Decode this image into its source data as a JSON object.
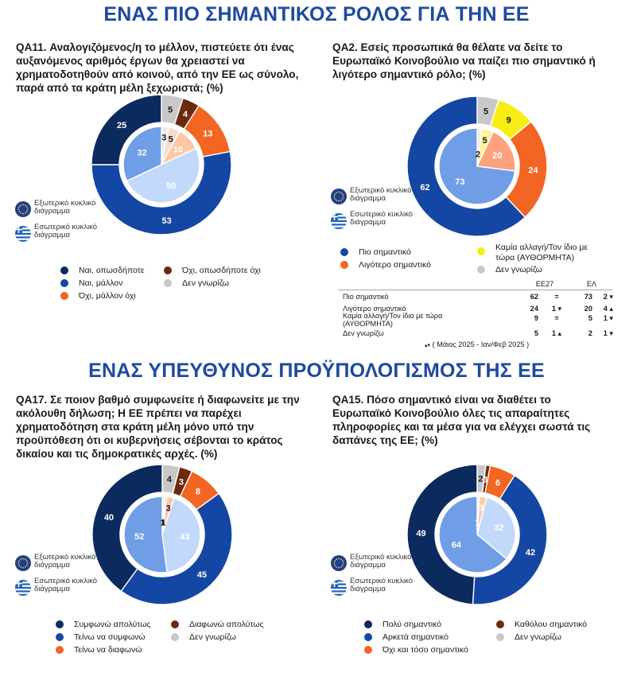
{
  "section1": {
    "title": "ΕΝΑΣ ΠΙΟ ΣΗΜΑΝΤΙΚΟΣ ΡΟΛΟΣ ΓΙΑ ΤΗΝ ΕΕ"
  },
  "section2": {
    "title": "ΕΝΑΣ ΥΠΕΥΘΥΝΟΣ ΠΡΟΫΠΟΛΟΓΙΣΜΟΣ ΤΗΣ ΕΕ"
  },
  "ring_key": {
    "outer_label": "Εξωτερικό κυκλικό διάγραμμα",
    "inner_label": "Εσωτερικό κυκλικό διάγραμμα",
    "outer_icon": "eu-flag-icon",
    "inner_icon": "greek-flag-icon"
  },
  "chart_data": [
    {
      "id": "qa11",
      "type": "pie",
      "title": "QA11. Αναλογιζόμενος/η το μέλλον, πιστεύετε ότι ένας αυξανόμενος αριθμός έργων θα χρειαστεί να χρηματοδοτηθούν από κοινού, από την ΕΕ ως σύνολο, παρά από τα κράτη μέλη ξεχωριστά; (%)",
      "rings": [
        "Εξωτερικό κυκλικό διάγραμμα",
        "Εσωτερικό κυκλικό διάγραμμα"
      ],
      "categories": [
        "Ναι, οπωσδήποτε",
        "Ναι, μάλλον",
        "Όχι, μάλλον όχι",
        "Όχι, οπωσδήποτε όχι",
        "Δεν γνωρίζω"
      ],
      "series": [
        {
          "name": "Εξωτερικό κυκλικό διάγραμμα",
          "values": [
            25,
            53,
            13,
            4,
            5
          ]
        },
        {
          "name": "Εσωτερικό κυκλικό διάγραμμα",
          "values": [
            32,
            50,
            10,
            5,
            3
          ]
        }
      ]
    },
    {
      "id": "qa2",
      "type": "pie",
      "title": "QA2. Εσείς προσωπικά θα θέλατε να δείτε το Ευρωπαϊκό Κοινοβούλιο να παίζει πιο σημαντικό ή λιγότερο σημαντικό ρόλο; (%)",
      "rings": [
        "Εξωτερικό κυκλικό διάγραμμα",
        "Εσωτερικό κυκλικό διάγραμμα"
      ],
      "categories": [
        "Πιο σημαντικό",
        "Λιγότερο σημαντικό",
        "Καμία αλλαγή/Τον ίδιο με τώρα (ΑΥΘΟΡΜΗΤΑ)",
        "Δεν γνωρίζω"
      ],
      "series": [
        {
          "name": "Εξωτερικό κυκλικό διάγραμμα",
          "values": [
            62,
            24,
            9,
            5
          ]
        },
        {
          "name": "Εσωτερικό κυκλικό διάγραμμα",
          "values": [
            73,
            20,
            5,
            2
          ]
        }
      ]
    },
    {
      "id": "qa17",
      "type": "pie",
      "title": "QA17. Σε ποιον βαθμό συμφωνείτε ή διαφωνείτε με την ακόλουθη δήλωση; Η ΕΕ πρέπει να παρέχει χρηματοδότηση στα κράτη μέλη μόνο υπό την προϋπόθεση ότι οι κυβερνήσεις σέβονται το κράτος δικαίου και τις δημοκρατικές αρχές. (%)",
      "rings": [
        "Εξωτερικό κυκλικό διάγραμμα",
        "Εσωτερικό κυκλικό διάγραμμα"
      ],
      "categories": [
        "Συμφωνώ απολύτως",
        "Τείνω να συμφωνώ",
        "Τείνω να διαφωνώ",
        "Διαφωνώ απολύτως",
        "Δεν γνωρίζω"
      ],
      "series": [
        {
          "name": "Εξωτερικό κυκλικό διάγραμμα",
          "values": [
            40,
            45,
            8,
            3,
            4
          ]
        },
        {
          "name": "Εσωτερικό κυκλικό διάγραμμα",
          "values": [
            52,
            43,
            3,
            1,
            1
          ]
        }
      ]
    },
    {
      "id": "qa15",
      "type": "pie",
      "title": "QA15. Πόσο σημαντικό είναι να διαθέτει το Ευρωπαϊκό Κοινοβούλιο όλες τις απαραίτητες πληροφορίες και τα μέσα για να ελέγχει σωστά τις δαπάνες της ΕΕ; (%)",
      "rings": [
        "Εξωτερικό κυκλικό διάγραμμα",
        "Εσωτερικό κυκλικό διάγραμμα"
      ],
      "categories": [
        "Πολύ σημαντικό",
        "Αρκετά σημαντικό",
        "Όχι και τόσο σημαντικό",
        "Καθόλου σημαντικό",
        "Δεν γνωρίζω"
      ],
      "series": [
        {
          "name": "Εξωτερικό κυκλικό διάγραμμα",
          "values": [
            49,
            42,
            6,
            1,
            2
          ]
        },
        {
          "name": "Εσωτερικό κυκλικό διάγραμμα",
          "values": [
            64,
            32,
            3,
            0,
            1
          ]
        }
      ]
    }
  ],
  "colors": {
    "qa11": {
      "outer": [
        "#0b2a5e",
        "#1447a3",
        "#f26522",
        "#6b2a0e",
        "#c8c8c8"
      ],
      "inner": [
        "#6f9ee6",
        "#c3d9fb",
        "#fdc7a6",
        "#f6dccb",
        "#ececec"
      ]
    },
    "qa2": {
      "outer": [
        "#1447a3",
        "#f26522",
        "#f7ee14",
        "#c8c8c8"
      ],
      "inner": [
        "#6f9ee6",
        "#fca27c",
        "#fdf49a",
        "#ececec"
      ]
    },
    "qa17": {
      "outer": [
        "#0b2a5e",
        "#1447a3",
        "#f26522",
        "#6b2a0e",
        "#c8c8c8"
      ],
      "inner": [
        "#6f9ee6",
        "#c3d9fb",
        "#fdc7a6",
        "#f6dccb",
        "#ececec"
      ]
    },
    "qa15": {
      "outer": [
        "#0b2a5e",
        "#1447a3",
        "#f26522",
        "#6b2a0e",
        "#c8c8c8"
      ],
      "inner": [
        "#6f9ee6",
        "#c3d9fb",
        "#fdc7a6",
        "#f6dccb",
        "#ececec"
      ]
    }
  },
  "label_colors": {
    "qa11": {
      "outer": [
        "#ffffff",
        "#ffffff",
        "#ffffff",
        "#ffffff",
        "#1a1a1a"
      ],
      "inner": [
        "#ffffff",
        "#ffffff",
        "#ffffff",
        "#1a1a1a",
        "#1a1a1a"
      ]
    },
    "qa2": {
      "outer": [
        "#ffffff",
        "#ffffff",
        "#1a1a1a",
        "#1a1a1a"
      ],
      "inner": [
        "#ffffff",
        "#ffffff",
        "#1a1a1a",
        "#1a1a1a"
      ]
    },
    "qa17": {
      "outer": [
        "#ffffff",
        "#ffffff",
        "#ffffff",
        "#ffffff",
        "#1a1a1a"
      ],
      "inner": [
        "#ffffff",
        "#ffffff",
        "#1a1a1a",
        "#1a1a1a",
        "#1a1a1a"
      ]
    },
    "qa15": {
      "outer": [
        "#ffffff",
        "#ffffff",
        "#ffffff",
        "#ffffff",
        "#1a1a1a"
      ],
      "inner": [
        "#ffffff",
        "#ffffff",
        "#ffffff",
        "#1a1a1a",
        "#ffffff"
      ]
    }
  },
  "legends": {
    "qa11": [
      "Ναι, οπωσδήποτε",
      "Ναι, μάλλον",
      "Όχι, μάλλον όχι",
      "Όχι, οπωσδήποτε όχι",
      "Δεν γνωρίζω"
    ],
    "qa2": [
      "Πιο σημαντικό",
      "Λιγότερο σημαντικό",
      "Καμία αλλαγή/Τον ίδιο με τώρα (ΑΥΘΟΡΜΗΤΑ)",
      "Δεν γνωρίζω"
    ],
    "qa17": [
      "Συμφωνώ απολύτως",
      "Τείνω να συμφωνώ",
      "Τείνω να διαφωνώ",
      "Διαφωνώ απολύτως",
      "Δεν γνωρίζω"
    ],
    "qa15": [
      "Πολύ σημαντικό",
      "Αρκετά σημαντικό",
      "Όχι και τόσο σημαντικό",
      "Καθόλου σημαντικό",
      "Δεν γνωρίζω"
    ]
  },
  "qa2_table": {
    "col_eu": "ΕΕ27",
    "col_gr": "ΕΛ",
    "rows": [
      {
        "label": "Πιο σημαντικό",
        "eu": "62",
        "cmp": "=",
        "gr": "73",
        "gr_delta": "2",
        "gr_dir": "▾"
      },
      {
        "label": "Λιγότερο σημαντικό",
        "eu": "24",
        "eu_delta": "1",
        "eu_dir": "▾",
        "gr": "20",
        "gr_delta": "4",
        "gr_dir": "▴"
      },
      {
        "label": "Καμία αλλαγή/Τον ίδιο με τώρα (ΑΥΘΟΡΜΗΤΑ)",
        "eu": "9",
        "cmp": "=",
        "gr": "5",
        "gr_delta": "1",
        "gr_dir": "▾"
      },
      {
        "label": "Δεν γνωρίζω",
        "eu": "5",
        "eu_delta": "1",
        "eu_dir": "▴",
        "gr": "2",
        "gr_delta": "1",
        "gr_dir": "▾"
      }
    ],
    "footnote_arrows": "▴▾",
    "footnote": "( Μάιος 2025 - Ιαν/Φεβ 2025 )"
  }
}
